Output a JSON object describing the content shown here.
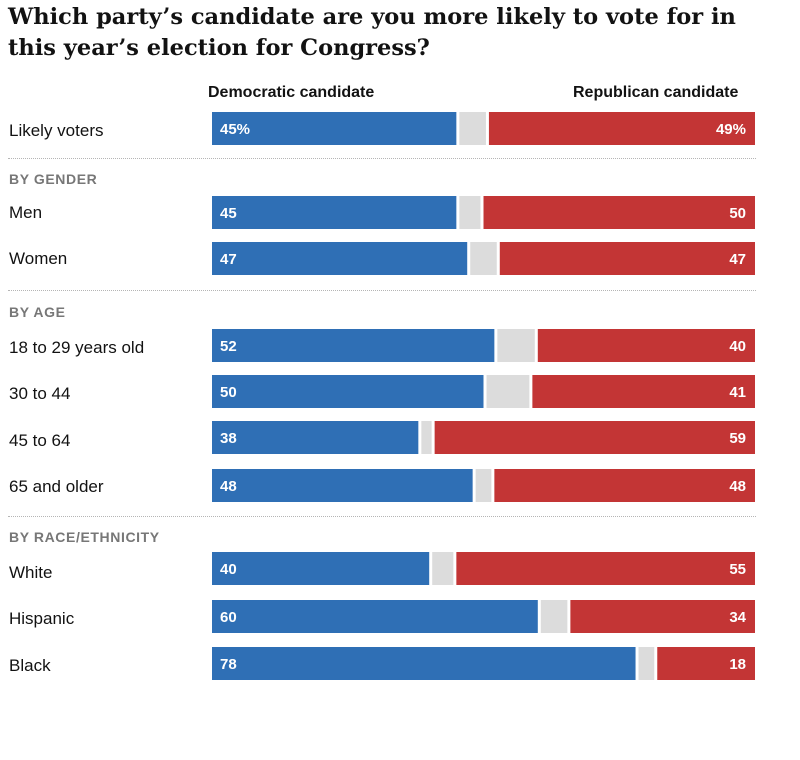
{
  "title": "Which party’s candidate are you more likely to vote for in this year’s election for Congress?",
  "colors": {
    "democratic": "#2f6fb5",
    "republican": "#c33535",
    "undecided": "#dcdcdc"
  },
  "chart_data": {
    "type": "bar",
    "orientation": "horizontal-stacked",
    "title": "Which party’s candidate are you more likely to vote for in this year’s election for Congress?",
    "series": [
      {
        "name": "Democratic candidate",
        "color": "#2f6fb5"
      },
      {
        "name": "Republican candidate",
        "color": "#c33535"
      }
    ],
    "sections": [
      {
        "label": "",
        "rows": [
          {
            "label": "Likely voters",
            "dem": 45,
            "rep": 49,
            "dem_text": "45%",
            "rep_text": "49%"
          }
        ]
      },
      {
        "label": "BY GENDER",
        "rows": [
          {
            "label": "Men",
            "dem": 45,
            "rep": 50,
            "dem_text": "45",
            "rep_text": "50"
          },
          {
            "label": "Women",
            "dem": 47,
            "rep": 47,
            "dem_text": "47",
            "rep_text": "47"
          }
        ]
      },
      {
        "label": "BY AGE",
        "rows": [
          {
            "label": "18 to 29 years old",
            "dem": 52,
            "rep": 40,
            "dem_text": "52",
            "rep_text": "40"
          },
          {
            "label": "30 to 44",
            "dem": 50,
            "rep": 41,
            "dem_text": "50",
            "rep_text": "41"
          },
          {
            "label": "45 to 64",
            "dem": 38,
            "rep": 59,
            "dem_text": "38",
            "rep_text": "59"
          },
          {
            "label": "65 and older",
            "dem": 48,
            "rep": 48,
            "dem_text": "48",
            "rep_text": "48"
          }
        ]
      },
      {
        "label": "BY RACE/ETHNICITY",
        "rows": [
          {
            "label": "White",
            "dem": 40,
            "rep": 55,
            "dem_text": "40",
            "rep_text": "55"
          },
          {
            "label": "Hispanic",
            "dem": 60,
            "rep": 34,
            "dem_text": "60",
            "rep_text": "34"
          },
          {
            "label": "Black",
            "dem": 78,
            "rep": 18,
            "dem_text": "78",
            "rep_text": "18"
          }
        ]
      }
    ]
  }
}
